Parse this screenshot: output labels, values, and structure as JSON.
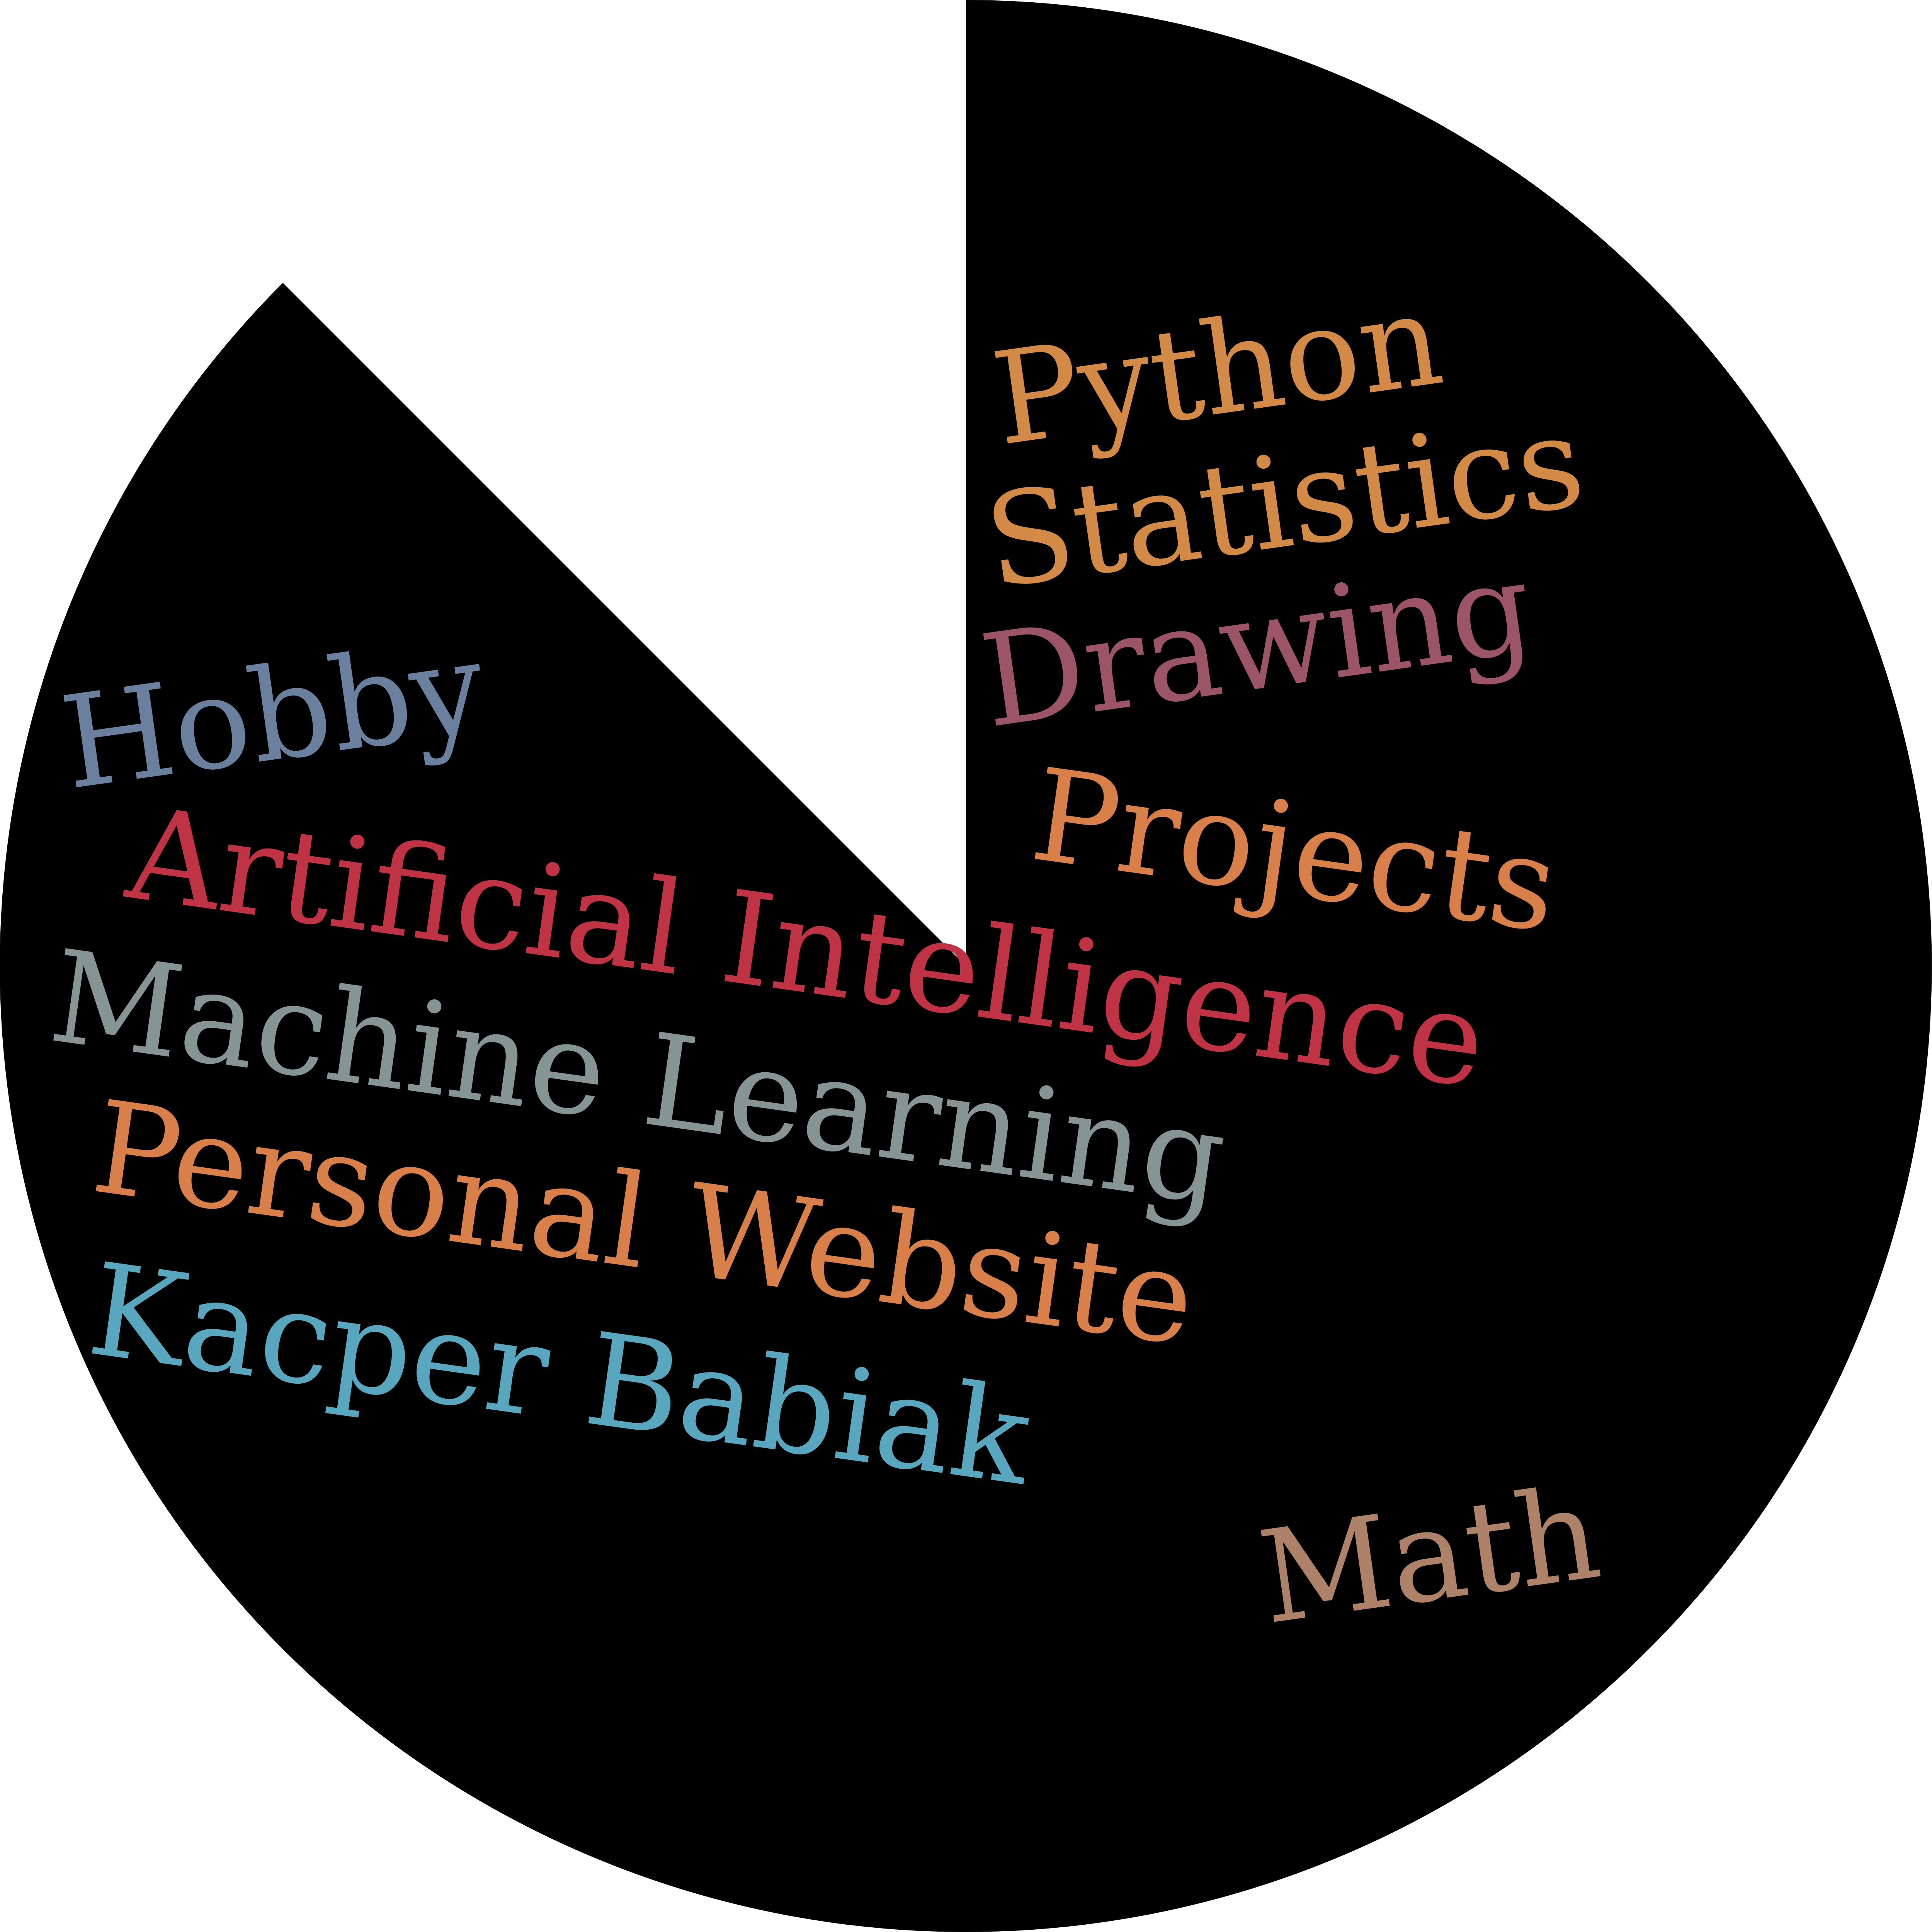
{
  "background_color": "#ffffff",
  "disc_color": "#000000",
  "words": [
    {
      "text": "Python",
      "color": "#d48a47"
    },
    {
      "text": "Statistics",
      "color": "#d48a47"
    },
    {
      "text": "Drawing",
      "color": "#9b5567"
    },
    {
      "text": "Projects",
      "color": "#d9804a"
    },
    {
      "text": "Hobby",
      "color": "#6a809e"
    },
    {
      "text": "Artificial Intelligence",
      "color": "#c03345"
    },
    {
      "text": "Machine Learning",
      "color": "#869593"
    },
    {
      "text": "Personal Website",
      "color": "#d9804a"
    },
    {
      "text": "Kacper Babiak",
      "color": "#58a7bf"
    },
    {
      "text": "Math",
      "color": "#ad8268"
    }
  ]
}
